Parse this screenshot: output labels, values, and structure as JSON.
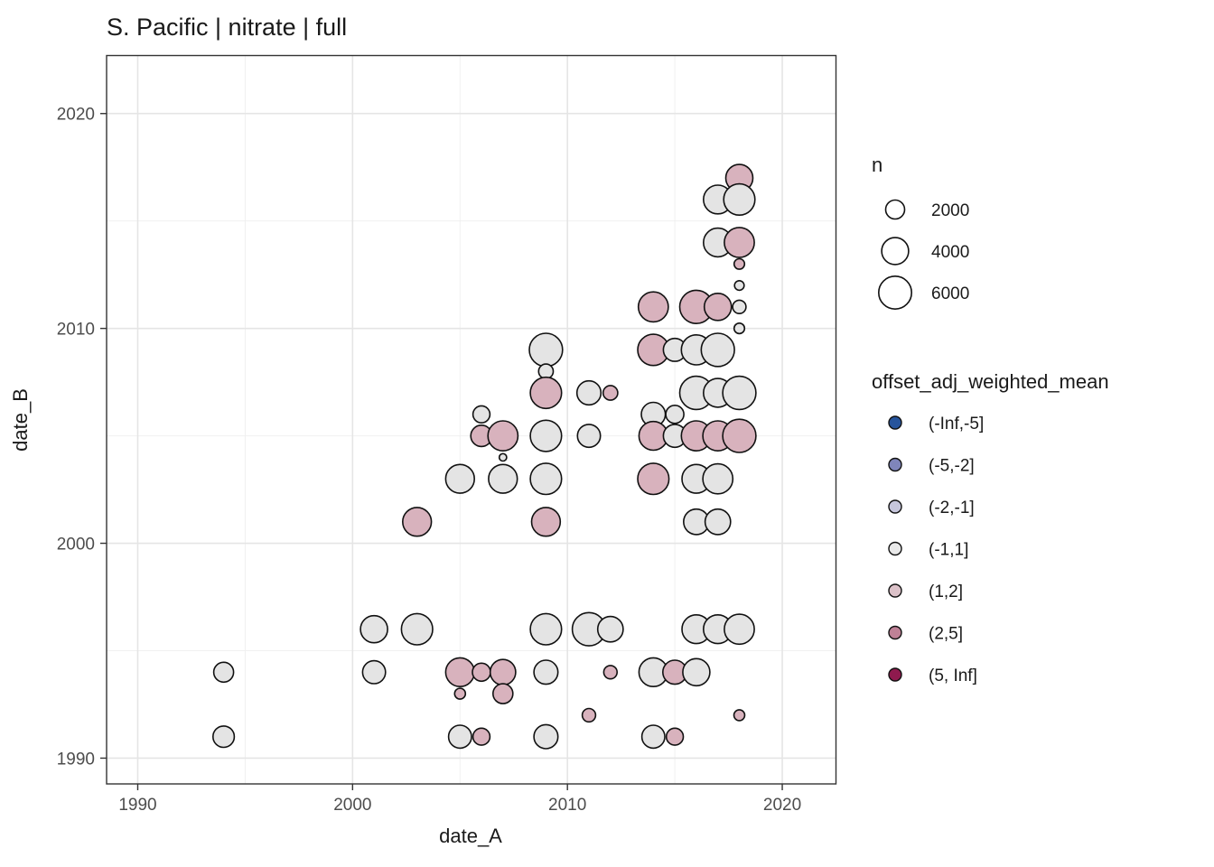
{
  "page": {
    "background": "#ffffff"
  },
  "chart_data": {
    "type": "scatter",
    "title": "S. Pacific | nitrate | full",
    "xlabel": "date_A",
    "ylabel": "date_B",
    "x_ticks": [
      1990,
      2000,
      2010,
      2020
    ],
    "y_ticks": [
      1990,
      2000,
      2010,
      2020
    ],
    "x_minor": [
      1995,
      2005,
      2015
    ],
    "y_minor": [
      1995,
      2005,
      2015
    ],
    "xlim": [
      1988.55,
      2022.5
    ],
    "ylim": [
      1988.8,
      2022.7
    ],
    "grid": true,
    "legend_position": "right",
    "style": {
      "panel_border": "#333333",
      "major_grid": "#e5e5e5",
      "minor_grid": "#f0f0f0",
      "tick_color": "#333333",
      "point_stroke": "#111111",
      "point_fills": {
        "(-1,1]": "#e4e4e4",
        "(1,2]": "#d8b2bd"
      }
    },
    "size_legend": {
      "title": "n",
      "entries": [
        2000,
        4000,
        6000
      ]
    },
    "color_legend": {
      "title": "offset_adj_weighted_mean",
      "bins": [
        {
          "label": "(-Inf,-5]",
          "color": "#26549c"
        },
        {
          "label": "(-5,-2]",
          "color": "#7f85bb"
        },
        {
          "label": "(-2,-1]",
          "color": "#c6c6dc"
        },
        {
          "label": "(-1,1]",
          "color": "#e9e9e9"
        },
        {
          "label": "(1,2]",
          "color": "#dcc2c9"
        },
        {
          "label": "(2,5]",
          "color": "#bf8196"
        },
        {
          "label": "(5, Inf]",
          "color": "#8f1a4e"
        }
      ]
    },
    "points": [
      {
        "date_A": 2018,
        "date_B": 2017,
        "n": 4100,
        "bin": "(1,2]"
      },
      {
        "date_A": 2017,
        "date_B": 2016,
        "n": 4600,
        "bin": "(-1,1]"
      },
      {
        "date_A": 2018,
        "date_B": 2016,
        "n": 5400,
        "bin": "(-1,1]"
      },
      {
        "date_A": 2017,
        "date_B": 2014,
        "n": 4600,
        "bin": "(-1,1]"
      },
      {
        "date_A": 2018,
        "date_B": 2014,
        "n": 5000,
        "bin": "(1,2]"
      },
      {
        "date_A": 2018,
        "date_B": 2013,
        "n": 600,
        "bin": "(1,2]"
      },
      {
        "date_A": 2018,
        "date_B": 2012,
        "n": 500,
        "bin": "(-1,1]"
      },
      {
        "date_A": 2014,
        "date_B": 2011,
        "n": 5000,
        "bin": "(1,2]"
      },
      {
        "date_A": 2016,
        "date_B": 2011,
        "n": 6100,
        "bin": "(1,2]"
      },
      {
        "date_A": 2017,
        "date_B": 2011,
        "n": 4100,
        "bin": "(1,2]"
      },
      {
        "date_A": 2018,
        "date_B": 2011,
        "n": 1000,
        "bin": "(-1,1]"
      },
      {
        "date_A": 2018,
        "date_B": 2010,
        "n": 600,
        "bin": "(-1,1]"
      },
      {
        "date_A": 2009,
        "date_B": 2009,
        "n": 6100,
        "bin": "(-1,1]"
      },
      {
        "date_A": 2014,
        "date_B": 2009,
        "n": 5400,
        "bin": "(1,2]"
      },
      {
        "date_A": 2015,
        "date_B": 2009,
        "n": 2900,
        "bin": "(-1,1]"
      },
      {
        "date_A": 2016,
        "date_B": 2009,
        "n": 5000,
        "bin": "(-1,1]"
      },
      {
        "date_A": 2017,
        "date_B": 2009,
        "n": 6100,
        "bin": "(-1,1]"
      },
      {
        "date_A": 2009,
        "date_B": 2008,
        "n": 1200,
        "bin": "(-1,1]"
      },
      {
        "date_A": 2009,
        "date_B": 2007,
        "n": 5400,
        "bin": "(1,2]"
      },
      {
        "date_A": 2011,
        "date_B": 2007,
        "n": 3200,
        "bin": "(-1,1]"
      },
      {
        "date_A": 2012,
        "date_B": 2007,
        "n": 1200,
        "bin": "(1,2]"
      },
      {
        "date_A": 2016,
        "date_B": 2007,
        "n": 6100,
        "bin": "(-1,1]"
      },
      {
        "date_A": 2017,
        "date_B": 2007,
        "n": 4600,
        "bin": "(-1,1]"
      },
      {
        "date_A": 2018,
        "date_B": 2007,
        "n": 6100,
        "bin": "(-1,1]"
      },
      {
        "date_A": 2006,
        "date_B": 2006,
        "n": 1600,
        "bin": "(-1,1]"
      },
      {
        "date_A": 2014,
        "date_B": 2006,
        "n": 3200,
        "bin": "(-1,1]"
      },
      {
        "date_A": 2015,
        "date_B": 2006,
        "n": 1800,
        "bin": "(-1,1]"
      },
      {
        "date_A": 2006,
        "date_B": 2005,
        "n": 2500,
        "bin": "(1,2]"
      },
      {
        "date_A": 2007,
        "date_B": 2005,
        "n": 5000,
        "bin": "(1,2]"
      },
      {
        "date_A": 2009,
        "date_B": 2005,
        "n": 5400,
        "bin": "(-1,1]"
      },
      {
        "date_A": 2011,
        "date_B": 2005,
        "n": 2900,
        "bin": "(-1,1]"
      },
      {
        "date_A": 2014,
        "date_B": 2005,
        "n": 4600,
        "bin": "(1,2]"
      },
      {
        "date_A": 2015,
        "date_B": 2005,
        "n": 2900,
        "bin": "(-1,1]"
      },
      {
        "date_A": 2016,
        "date_B": 2005,
        "n": 5000,
        "bin": "(1,2]"
      },
      {
        "date_A": 2017,
        "date_B": 2005,
        "n": 5000,
        "bin": "(1,2]"
      },
      {
        "date_A": 2018,
        "date_B": 2005,
        "n": 6100,
        "bin": "(1,2]"
      },
      {
        "date_A": 2007,
        "date_B": 2004,
        "n": 300,
        "bin": "(-1,1]"
      },
      {
        "date_A": 2005,
        "date_B": 2003,
        "n": 4600,
        "bin": "(-1,1]"
      },
      {
        "date_A": 2007,
        "date_B": 2003,
        "n": 4600,
        "bin": "(-1,1]"
      },
      {
        "date_A": 2009,
        "date_B": 2003,
        "n": 5400,
        "bin": "(-1,1]"
      },
      {
        "date_A": 2014,
        "date_B": 2003,
        "n": 5400,
        "bin": "(1,2]"
      },
      {
        "date_A": 2016,
        "date_B": 2003,
        "n": 4600,
        "bin": "(-1,1]"
      },
      {
        "date_A": 2017,
        "date_B": 2003,
        "n": 5000,
        "bin": "(-1,1]"
      },
      {
        "date_A": 2003,
        "date_B": 2001,
        "n": 4600,
        "bin": "(1,2]"
      },
      {
        "date_A": 2009,
        "date_B": 2001,
        "n": 4600,
        "bin": "(1,2]"
      },
      {
        "date_A": 2016,
        "date_B": 2001,
        "n": 3600,
        "bin": "(-1,1]"
      },
      {
        "date_A": 2017,
        "date_B": 2001,
        "n": 3600,
        "bin": "(-1,1]"
      },
      {
        "date_A": 2001,
        "date_B": 1996,
        "n": 4100,
        "bin": "(-1,1]"
      },
      {
        "date_A": 2003,
        "date_B": 1996,
        "n": 5400,
        "bin": "(-1,1]"
      },
      {
        "date_A": 2009,
        "date_B": 1996,
        "n": 5400,
        "bin": "(-1,1]"
      },
      {
        "date_A": 2011,
        "date_B": 1996,
        "n": 6100,
        "bin": "(-1,1]"
      },
      {
        "date_A": 2012,
        "date_B": 1996,
        "n": 3600,
        "bin": "(-1,1]"
      },
      {
        "date_A": 2016,
        "date_B": 1996,
        "n": 4600,
        "bin": "(-1,1]"
      },
      {
        "date_A": 2017,
        "date_B": 1996,
        "n": 4600,
        "bin": "(-1,1]"
      },
      {
        "date_A": 2018,
        "date_B": 1996,
        "n": 5000,
        "bin": "(-1,1]"
      },
      {
        "date_A": 1994,
        "date_B": 1994,
        "n": 2200,
        "bin": "(-1,1]"
      },
      {
        "date_A": 2001,
        "date_B": 1994,
        "n": 2900,
        "bin": "(-1,1]"
      },
      {
        "date_A": 2005,
        "date_B": 1994,
        "n": 4600,
        "bin": "(1,2]"
      },
      {
        "date_A": 2006,
        "date_B": 1994,
        "n": 1800,
        "bin": "(1,2]"
      },
      {
        "date_A": 2007,
        "date_B": 1994,
        "n": 3600,
        "bin": "(1,2]"
      },
      {
        "date_A": 2009,
        "date_B": 1994,
        "n": 3200,
        "bin": "(-1,1]"
      },
      {
        "date_A": 2012,
        "date_B": 1994,
        "n": 1000,
        "bin": "(1,2]"
      },
      {
        "date_A": 2014,
        "date_B": 1994,
        "n": 4600,
        "bin": "(-1,1]"
      },
      {
        "date_A": 2015,
        "date_B": 1994,
        "n": 3200,
        "bin": "(1,2]"
      },
      {
        "date_A": 2016,
        "date_B": 1994,
        "n": 4100,
        "bin": "(-1,1]"
      },
      {
        "date_A": 2005,
        "date_B": 1993,
        "n": 650,
        "bin": "(1,2]"
      },
      {
        "date_A": 2007,
        "date_B": 1993,
        "n": 2200,
        "bin": "(1,2]"
      },
      {
        "date_A": 2011,
        "date_B": 1992,
        "n": 1000,
        "bin": "(1,2]"
      },
      {
        "date_A": 2018,
        "date_B": 1992,
        "n": 650,
        "bin": "(1,2]"
      },
      {
        "date_A": 1994,
        "date_B": 1991,
        "n": 2500,
        "bin": "(-1,1]"
      },
      {
        "date_A": 2005,
        "date_B": 1991,
        "n": 2900,
        "bin": "(-1,1]"
      },
      {
        "date_A": 2006,
        "date_B": 1991,
        "n": 1600,
        "bin": "(1,2]"
      },
      {
        "date_A": 2009,
        "date_B": 1991,
        "n": 3200,
        "bin": "(-1,1]"
      },
      {
        "date_A": 2014,
        "date_B": 1991,
        "n": 2900,
        "bin": "(-1,1]"
      },
      {
        "date_A": 2015,
        "date_B": 1991,
        "n": 1600,
        "bin": "(1,2]"
      }
    ]
  }
}
